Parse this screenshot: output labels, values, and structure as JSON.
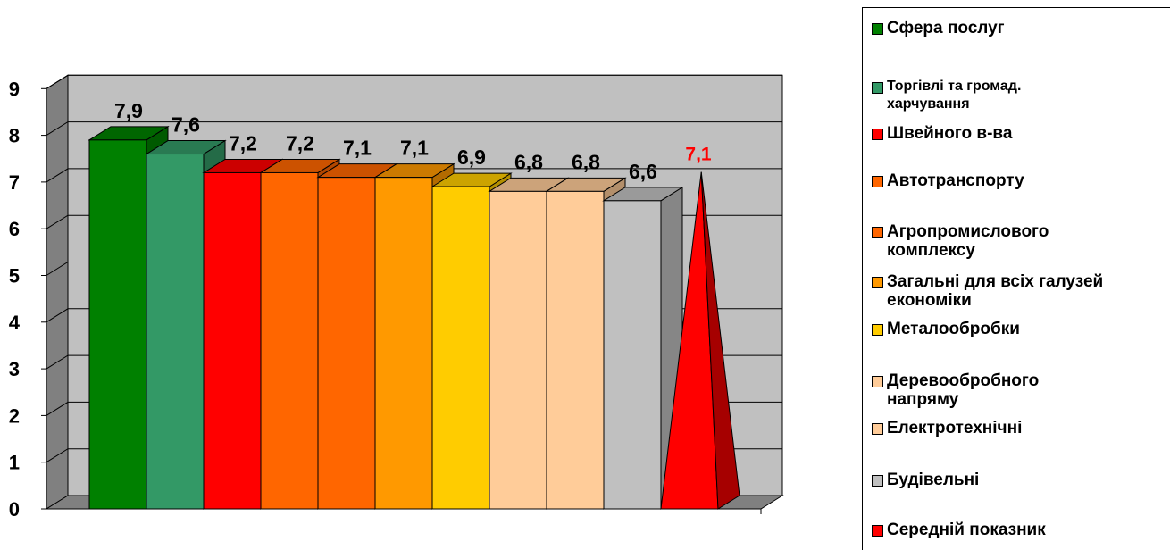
{
  "chart_data": {
    "type": "bar",
    "categories": [
      "Сфера послуг",
      "Торгівлі та громад. харчування",
      "Швейного в-ва",
      "Автотранспорту",
      "Агропромислового комплексу",
      "Загальні для всіх галузей економіки",
      "Металообробки",
      "Деревообробного напряму",
      "Електротехнічні",
      "Будівельні",
      "Середній показник"
    ],
    "values": [
      7.9,
      7.6,
      7.2,
      7.2,
      7.1,
      7.1,
      6.9,
      6.8,
      6.8,
      6.6,
      7.1
    ],
    "data_labels": [
      "7,9",
      "7,6",
      "7,2",
      "7,2",
      "7,1",
      "7,1",
      "6,9",
      "6,8",
      "6,8",
      "6,6",
      "7,1"
    ],
    "colors": [
      "#008000",
      "#339966",
      "#FF0000",
      "#FF6600",
      "#FF6600",
      "#FF9900",
      "#FFCC00",
      "#FFCC99",
      "#FFCC99",
      "#C0C0C0",
      "#FF0000"
    ],
    "shapes": [
      "box",
      "box",
      "box",
      "box",
      "box",
      "box",
      "box",
      "box",
      "box",
      "box",
      "pyramid"
    ],
    "average_label_color": "#FF0000",
    "y_ticks": [
      "0",
      "1",
      "2",
      "3",
      "4",
      "5",
      "6",
      "7",
      "8",
      "9"
    ],
    "ylim": [
      0,
      9
    ],
    "grid": true,
    "wall_color": "#C0C0C0",
    "legend_position": "right"
  }
}
